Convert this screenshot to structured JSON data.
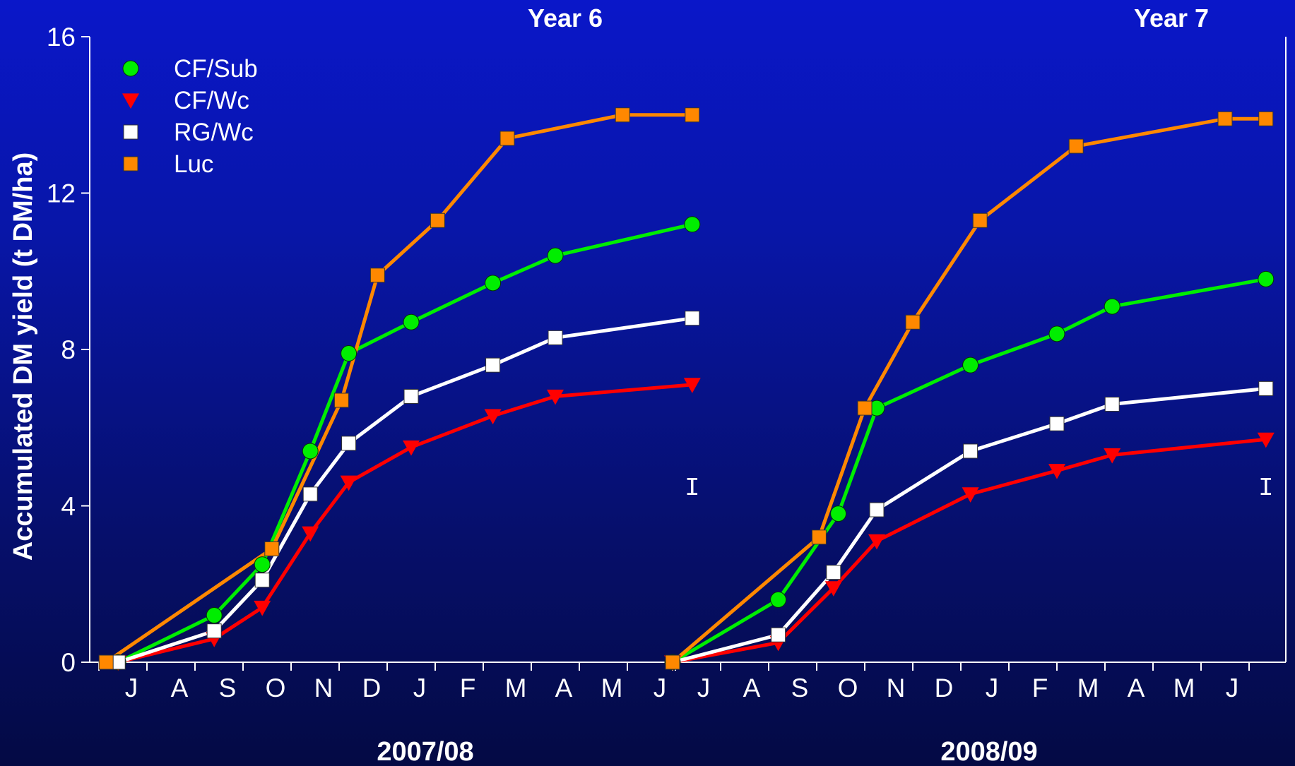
{
  "chart_data": {
    "type": "line",
    "ylabel": "Accumulated DM yield (t DM/ha)",
    "ylim": [
      0,
      16
    ],
    "yticks": [
      "0",
      "4",
      "8",
      "12",
      "16"
    ],
    "legend_placement": "top-left",
    "lsd_marker": "I",
    "panels": [
      {
        "season": "2007/08",
        "year_label": "Year 6",
        "months": [
          "J",
          "A",
          "S",
          "O",
          "N",
          "D",
          "J",
          "F",
          "M",
          "A",
          "M",
          "J"
        ],
        "lsd_bar": {
          "month_position": 12.35,
          "y": 4.5
        },
        "series": [
          {
            "name": "CF/Sub",
            "x": [
              0.4,
              2.4,
              3.4,
              4.4,
              5.2,
              6.5,
              8.2,
              9.5,
              12.35
            ],
            "y": [
              0.0,
              1.2,
              2.5,
              5.4,
              7.9,
              8.7,
              9.7,
              10.4,
              11.2
            ]
          },
          {
            "name": "CF/Wc",
            "x": [
              0.4,
              2.4,
              3.4,
              4.4,
              5.2,
              6.5,
              8.2,
              9.5,
              12.35
            ],
            "y": [
              0.0,
              0.6,
              1.4,
              3.3,
              4.6,
              5.5,
              6.3,
              6.8,
              7.1
            ]
          },
          {
            "name": "RG/Wc",
            "x": [
              0.4,
              2.4,
              3.4,
              4.4,
              5.2,
              6.5,
              8.2,
              9.5,
              12.35
            ],
            "y": [
              0.0,
              0.8,
              2.1,
              4.3,
              5.6,
              6.8,
              7.6,
              8.3,
              8.8
            ]
          },
          {
            "name": "Luc",
            "x": [
              0.15,
              3.6,
              5.05,
              5.8,
              7.05,
              8.5,
              10.9,
              12.35
            ],
            "y": [
              0.0,
              2.9,
              6.7,
              9.9,
              11.3,
              13.4,
              14.0,
              14.0
            ]
          }
        ]
      },
      {
        "season": "2008/09",
        "year_label": "Year 7",
        "months": [
          "J",
          "A",
          "S",
          "O",
          "N",
          "D",
          "J",
          "F",
          "M",
          "A",
          "M",
          "J"
        ],
        "lsd_bar": {
          "month_position": 12.35,
          "y": 4.5
        },
        "series": [
          {
            "name": "CF/Sub",
            "x": [
              0.0,
              2.2,
              3.45,
              4.25,
              6.2,
              8.0,
              9.15,
              12.35
            ],
            "y": [
              0.0,
              1.6,
              3.8,
              6.5,
              7.6,
              8.4,
              9.1,
              9.8
            ]
          },
          {
            "name": "CF/Wc",
            "x": [
              0.0,
              2.2,
              3.35,
              4.25,
              6.2,
              8.0,
              9.15,
              12.35
            ],
            "y": [
              0.0,
              0.5,
              1.9,
              3.1,
              4.3,
              4.9,
              5.3,
              5.7
            ]
          },
          {
            "name": "RG/Wc",
            "x": [
              0.0,
              2.2,
              3.35,
              4.25,
              6.2,
              8.0,
              9.15,
              12.35
            ],
            "y": [
              0.0,
              0.7,
              2.3,
              3.9,
              5.4,
              6.1,
              6.6,
              7.0
            ]
          },
          {
            "name": "Luc",
            "x": [
              0.0,
              3.05,
              4.0,
              5.0,
              6.4,
              8.4,
              11.5,
              12.35
            ],
            "y": [
              0.0,
              3.2,
              6.5,
              8.7,
              11.3,
              13.2,
              13.9,
              13.9
            ]
          }
        ]
      }
    ]
  },
  "colors": {
    "CF/Sub": "#00ee00",
    "CF/Wc": "#ff0000",
    "RG/Wc": "#ffffff",
    "Luc": "#ff8800",
    "axis": "#ffffff"
  },
  "markers": {
    "CF/Sub": "circle",
    "CF/Wc": "triangle-down",
    "RG/Wc": "square",
    "Luc": "square"
  }
}
